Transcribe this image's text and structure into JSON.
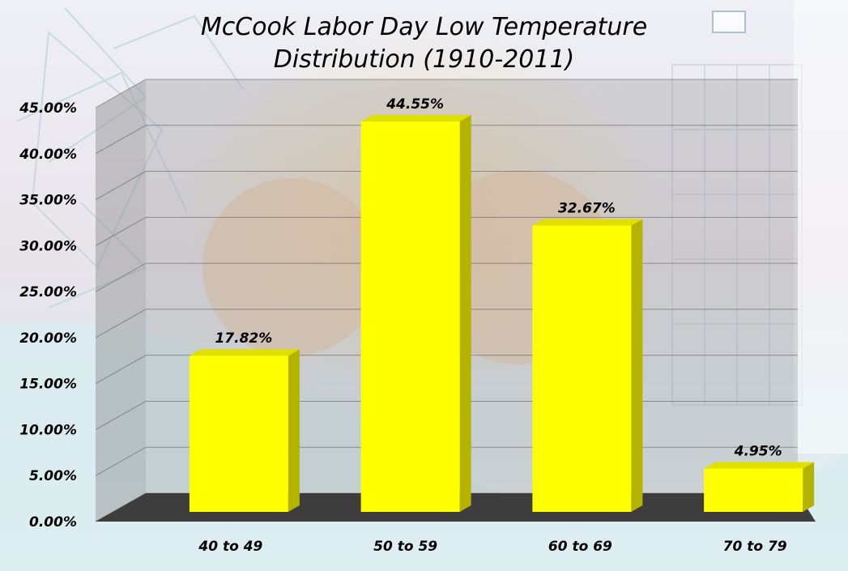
{
  "chart_data": {
    "type": "bar",
    "title": "McCook Labor Day Low Temperature",
    "subtitle": "Distribution (1910-2011)",
    "xlabel": "",
    "ylabel": "",
    "categories": [
      "40 to 49",
      "50 to 59",
      "60 to 69",
      "70 to 79"
    ],
    "values": [
      17.82,
      44.55,
      32.67,
      4.95
    ],
    "data_labels": [
      "17.82%",
      "44.55%",
      "32.67%",
      "4.95%"
    ],
    "ylim": [
      0,
      45
    ],
    "yticks": [
      0,
      5,
      10,
      15,
      20,
      25,
      30,
      35,
      40,
      45
    ],
    "ytick_labels": [
      "0.00%",
      "5.00%",
      "10.00%",
      "15.00%",
      "20.00%",
      "25.00%",
      "30.00%",
      "35.00%",
      "40.00%",
      "45.00%"
    ],
    "grid": true,
    "legend": "none",
    "style": "3d-column",
    "colors": {
      "bar_front": "#ffff00",
      "bar_side": "#b3b300",
      "bar_top": "#e0e000",
      "floor": "#3d3d3d",
      "back_wall": "#9a9a9a",
      "side_wall": "#8c8c8c",
      "gridline": "#555555"
    }
  }
}
